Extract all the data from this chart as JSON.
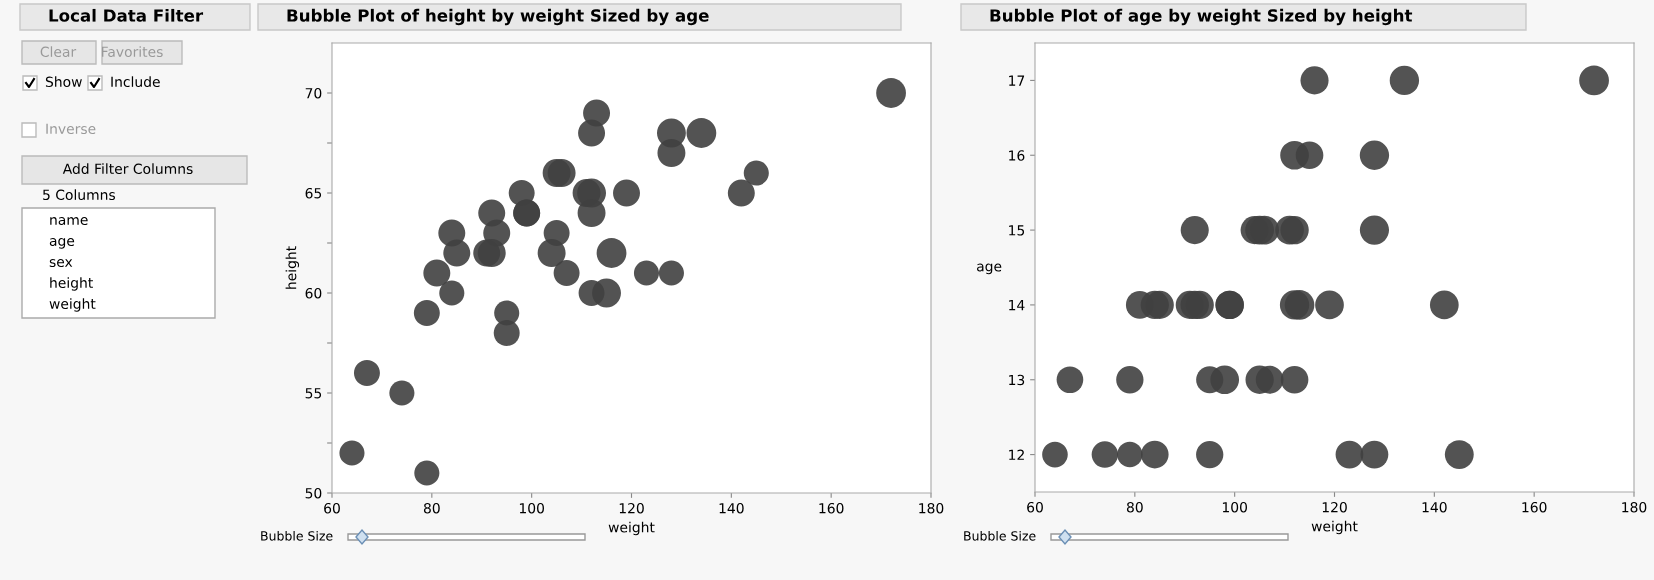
{
  "chart_data": [
    {
      "type": "other",
      "title": "Local Data Filter",
      "annotations": [
        "Clear",
        "Favorites",
        "Show",
        "Include",
        "Inverse",
        "Add Filter Columns",
        "5 Columns",
        "name",
        "age",
        "sex",
        "height",
        "weight"
      ]
    },
    {
      "type": "bubble",
      "title": "Bubble Plot of height by weight Sized by age",
      "xlabel": "weight",
      "ylabel": "height",
      "annotations": [
        "Bubble Size"
      ],
      "xlim": [
        60,
        180
      ],
      "xticks": [
        60,
        80,
        100,
        120,
        140,
        160,
        180
      ],
      "ylim": [
        50,
        72.5
      ],
      "yticks": [
        50,
        {
          "value": 52.5,
          "label": null
        },
        55,
        {
          "value": 57.5,
          "label": null
        },
        60,
        {
          "value": 62.5,
          "label": null
        },
        65,
        {
          "value": 67.5,
          "label": null
        },
        70
      ],
      "grid": false,
      "legend": false,
      "series": [
        {
          "color": "#404040",
          "x": [
            95,
            123,
            74,
            145,
            64,
            84,
            128,
            79,
            112,
            107,
            67,
            98,
            105,
            95,
            79,
            81,
            91,
            142,
            84,
            85,
            93,
            99,
            119,
            92,
            112,
            99,
            113,
            92,
            112,
            128,
            111,
            105,
            104,
            106,
            112,
            115,
            128,
            116,
            134,
            172
          ],
          "values": [
            59,
            61,
            55,
            66,
            52,
            60,
            61,
            51,
            60,
            61,
            56,
            65,
            63,
            58,
            59,
            61,
            62,
            65,
            63,
            62,
            63,
            64,
            65,
            64,
            68,
            64,
            69,
            62,
            64,
            67,
            65,
            66,
            62,
            66,
            65,
            60,
            68,
            62,
            68,
            70
          ],
          "sizes": [
            0.71,
            0.71,
            0.71,
            0.71,
            0.71,
            0.71,
            0.71,
            0.71,
            0.76,
            0.76,
            0.76,
            0.76,
            0.76,
            0.76,
            0.76,
            0.82,
            0.82,
            0.82,
            0.82,
            0.82,
            0.82,
            0.82,
            0.82,
            0.82,
            0.82,
            0.82,
            0.82,
            0.88,
            0.88,
            0.88,
            0.88,
            0.88,
            0.88,
            0.88,
            0.94,
            0.94,
            0.94,
            1,
            1,
            1
          ]
        }
      ]
    },
    {
      "type": "bubble",
      "title": "Bubble Plot of age by weight Sized by height",
      "xlabel": "weight",
      "ylabel": "age",
      "annotations": [
        "Bubble Size"
      ],
      "xlim": [
        60,
        180
      ],
      "xticks": [
        60,
        80,
        100,
        120,
        140,
        160,
        180
      ],
      "ylim": [
        11.5,
        17.5
      ],
      "yticks": [
        12,
        13,
        14,
        15,
        16,
        17
      ],
      "grid": false,
      "legend": false,
      "series": [
        {
          "color": "#404040",
          "x": [
            95,
            123,
            74,
            145,
            64,
            84,
            128,
            79,
            112,
            107,
            67,
            98,
            105,
            95,
            79,
            81,
            91,
            142,
            84,
            85,
            93,
            99,
            119,
            92,
            112,
            99,
            113,
            92,
            112,
            128,
            111,
            105,
            104,
            106,
            112,
            115,
            128,
            116,
            134,
            172
          ],
          "values": [
            12,
            12,
            12,
            12,
            12,
            12,
            12,
            12,
            13,
            13,
            13,
            13,
            13,
            13,
            13,
            14,
            14,
            14,
            14,
            14,
            14,
            14,
            14,
            14,
            14,
            14,
            14,
            15,
            15,
            15,
            15,
            15,
            15,
            15,
            16,
            16,
            16,
            17,
            17,
            17
          ],
          "sizes": [
            0.84,
            0.87,
            0.79,
            0.94,
            0.74,
            0.86,
            0.87,
            0.73,
            0.86,
            0.87,
            0.8,
            0.93,
            0.9,
            0.83,
            0.84,
            0.87,
            0.89,
            0.93,
            0.9,
            0.89,
            0.9,
            0.91,
            0.93,
            0.91,
            0.97,
            0.91,
            0.99,
            0.89,
            0.91,
            0.96,
            0.93,
            0.94,
            0.89,
            0.94,
            0.93,
            0.86,
            0.97,
            0.89,
            0.97,
            1
          ]
        }
      ]
    }
  ]
}
